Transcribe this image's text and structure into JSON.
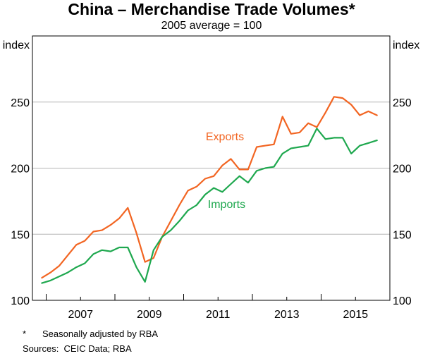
{
  "chart_data": {
    "type": "line",
    "title": "China – Merchandise Trade Volumes*",
    "subtitle": "2005 average = 100",
    "ylabel_left": "index",
    "ylabel_right": "index",
    "ylim": [
      100,
      300
    ],
    "yticks": [
      100,
      150,
      200,
      250
    ],
    "ytick_labels": [
      "100",
      "150",
      "200",
      "250"
    ],
    "xlim": [
      2005.6,
      2016.0
    ],
    "xticks": [
      2007,
      2009,
      2011,
      2013,
      2015
    ],
    "xtick_labels": [
      "2007",
      "2009",
      "2011",
      "2013",
      "2015"
    ],
    "x_minor_ticks": [
      2006,
      2008,
      2010,
      2012,
      2014,
      2016
    ],
    "grid": true,
    "x": [
      2005.875,
      2006.125,
      2006.375,
      2006.625,
      2006.875,
      2007.125,
      2007.375,
      2007.625,
      2007.875,
      2008.125,
      2008.375,
      2008.625,
      2008.875,
      2009.125,
      2009.375,
      2009.625,
      2009.875,
      2010.125,
      2010.375,
      2010.625,
      2010.875,
      2011.125,
      2011.375,
      2011.625,
      2011.875,
      2012.125,
      2012.375,
      2012.625,
      2012.875,
      2013.125,
      2013.375,
      2013.625,
      2013.875,
      2014.125,
      2014.375,
      2014.625,
      2014.875,
      2015.125,
      2015.375,
      2015.625
    ],
    "series": [
      {
        "name": "Exports",
        "color": "#f26522",
        "values": [
          117,
          121,
          126,
          134,
          142,
          145,
          152,
          153,
          157,
          162,
          170,
          151,
          129,
          132,
          148,
          160,
          172,
          183,
          186,
          192,
          194,
          202,
          207,
          199,
          199,
          216,
          217,
          218,
          239,
          226,
          227,
          234,
          231,
          242,
          254,
          253,
          248,
          240,
          243,
          240
        ]
      },
      {
        "name": "Imports",
        "color": "#1fa84f",
        "values": [
          113,
          115,
          118,
          121,
          125,
          128,
          135,
          138,
          137,
          140,
          140,
          125,
          114,
          138,
          148,
          153,
          160,
          168,
          172,
          180,
          185,
          182,
          188,
          194,
          189,
          198,
          200,
          201,
          211,
          215,
          216,
          217,
          230,
          222,
          223,
          223,
          211,
          217,
          219,
          221
        ]
      }
    ]
  },
  "footnotes": {
    "asterisk_mark": "*",
    "asterisk_text": "Seasonally adjusted by RBA",
    "sources_label": "Sources:",
    "sources_text": "CEIC Data; RBA"
  }
}
